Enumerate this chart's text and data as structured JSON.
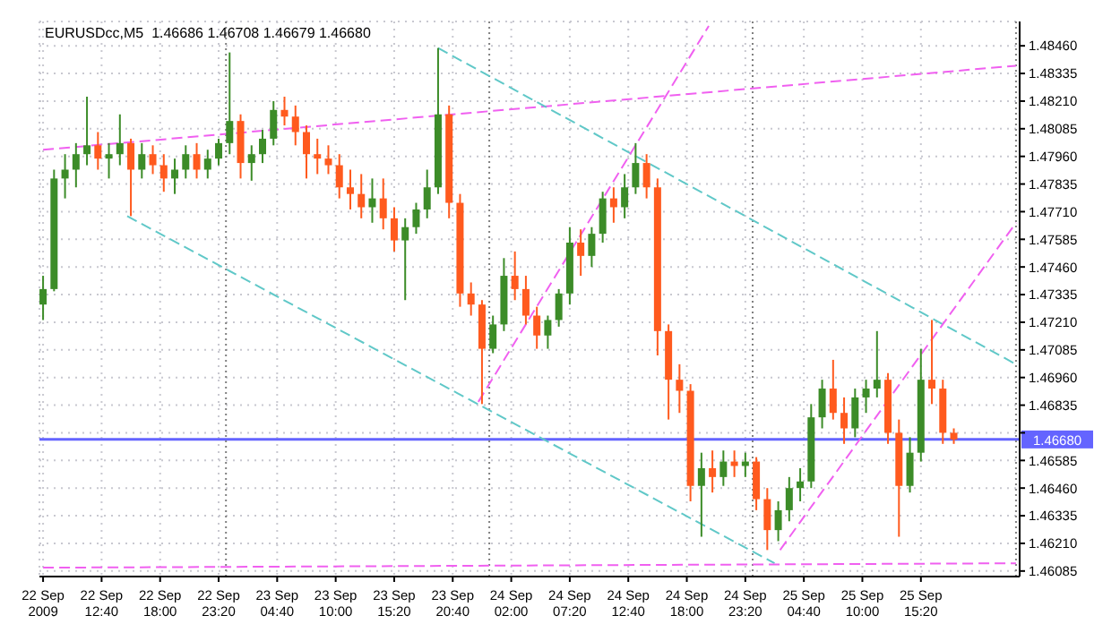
{
  "chart_data": {
    "type": "candlestick",
    "title": "EURUSDcc,M5  1.46686 1.46708 1.46679 1.46680",
    "x": [
      "2009-09-22T07:20",
      "2009-09-22T08:20",
      "2009-09-22T09:20",
      "2009-09-22T10:20",
      "2009-09-22T11:20",
      "2009-09-22T12:20",
      "2009-09-22T13:20",
      "2009-09-22T14:20",
      "2009-09-22T15:20",
      "2009-09-22T16:20",
      "2009-09-22T17:20",
      "2009-09-22T18:20",
      "2009-09-22T19:20",
      "2009-09-22T20:20",
      "2009-09-22T21:20",
      "2009-09-22T22:20",
      "2009-09-22T23:20",
      "2009-09-23T00:20",
      "2009-09-23T01:20",
      "2009-09-23T02:20",
      "2009-09-23T03:20",
      "2009-09-23T04:20",
      "2009-09-23T05:20",
      "2009-09-23T06:20",
      "2009-09-23T07:20",
      "2009-09-23T08:20",
      "2009-09-23T09:20",
      "2009-09-23T10:20",
      "2009-09-23T11:20",
      "2009-09-23T12:20",
      "2009-09-23T13:20",
      "2009-09-23T14:20",
      "2009-09-23T15:20",
      "2009-09-23T16:20",
      "2009-09-23T17:20",
      "2009-09-23T18:20",
      "2009-09-23T19:20",
      "2009-09-23T20:20",
      "2009-09-23T21:20",
      "2009-09-23T22:20",
      "2009-09-23T23:20",
      "2009-09-24T00:20",
      "2009-09-24T01:20",
      "2009-09-24T02:20",
      "2009-09-24T03:20",
      "2009-09-24T04:20",
      "2009-09-24T05:20",
      "2009-09-24T06:20",
      "2009-09-24T07:20",
      "2009-09-24T08:20",
      "2009-09-24T09:20",
      "2009-09-24T10:20",
      "2009-09-24T11:20",
      "2009-09-24T12:20",
      "2009-09-24T13:20",
      "2009-09-24T14:20",
      "2009-09-24T15:20",
      "2009-09-24T16:20",
      "2009-09-24T17:20",
      "2009-09-24T18:20",
      "2009-09-24T19:20",
      "2009-09-24T20:20",
      "2009-09-24T21:20",
      "2009-09-24T22:20",
      "2009-09-24T23:20",
      "2009-09-25T00:20",
      "2009-09-25T01:20",
      "2009-09-25T02:20",
      "2009-09-25T03:20",
      "2009-09-25T04:20",
      "2009-09-25T05:20",
      "2009-09-25T06:20",
      "2009-09-25T07:20",
      "2009-09-25T08:20",
      "2009-09-25T09:20",
      "2009-09-25T10:20",
      "2009-09-25T11:20",
      "2009-09-25T12:20",
      "2009-09-25T13:20",
      "2009-09-25T14:20",
      "2009-09-25T15:20",
      "2009-09-25T16:20",
      "2009-09-25T17:20",
      "2009-09-25T18:20"
    ],
    "ohlc": [
      [
        1.4729,
        1.4742,
        1.4722,
        1.4736
      ],
      [
        1.4736,
        1.479,
        1.4735,
        1.4786
      ],
      [
        1.4786,
        1.4797,
        1.4777,
        1.479
      ],
      [
        1.479,
        1.4802,
        1.4782,
        1.4797
      ],
      [
        1.4797,
        1.4823,
        1.4792,
        1.4801
      ],
      [
        1.4801,
        1.4807,
        1.479,
        1.4795
      ],
      [
        1.4795,
        1.4802,
        1.4786,
        1.4797
      ],
      [
        1.4797,
        1.4815,
        1.4792,
        1.4802
      ],
      [
        1.4802,
        1.4804,
        1.4769,
        1.479
      ],
      [
        1.479,
        1.4802,
        1.4786,
        1.4797
      ],
      [
        1.4797,
        1.4801,
        1.4788,
        1.4792
      ],
      [
        1.4792,
        1.4797,
        1.478,
        1.4786
      ],
      [
        1.4786,
        1.4795,
        1.4779,
        1.479
      ],
      [
        1.479,
        1.4801,
        1.4786,
        1.4797
      ],
      [
        1.4797,
        1.4802,
        1.4786,
        1.479
      ],
      [
        1.479,
        1.4799,
        1.4786,
        1.4795
      ],
      [
        1.4795,
        1.4804,
        1.4792,
        1.4802
      ],
      [
        1.4802,
        1.4843,
        1.4797,
        1.4812
      ],
      [
        1.4812,
        1.4815,
        1.4786,
        1.4793
      ],
      [
        1.4793,
        1.4801,
        1.4785,
        1.4797
      ],
      [
        1.4797,
        1.4808,
        1.4793,
        1.4804
      ],
      [
        1.4804,
        1.4821,
        1.4801,
        1.4817
      ],
      [
        1.4817,
        1.4823,
        1.481,
        1.4814
      ],
      [
        1.4814,
        1.4819,
        1.4801,
        1.4807
      ],
      [
        1.4807,
        1.481,
        1.4786,
        1.4797
      ],
      [
        1.4797,
        1.4804,
        1.4788,
        1.4795
      ],
      [
        1.4795,
        1.4801,
        1.4788,
        1.4792
      ],
      [
        1.4792,
        1.4797,
        1.4777,
        1.4782
      ],
      [
        1.4782,
        1.479,
        1.4772,
        1.4779
      ],
      [
        1.4779,
        1.4788,
        1.4768,
        1.4773
      ],
      [
        1.4773,
        1.4786,
        1.4766,
        1.4777
      ],
      [
        1.4777,
        1.4786,
        1.4763,
        1.4768
      ],
      [
        1.4768,
        1.4773,
        1.4753,
        1.4758
      ],
      [
        1.4758,
        1.4768,
        1.4731,
        1.4764
      ],
      [
        1.4764,
        1.4775,
        1.4761,
        1.4772
      ],
      [
        1.4772,
        1.479,
        1.4768,
        1.4782
      ],
      [
        1.4782,
        1.4845,
        1.4779,
        1.4815
      ],
      [
        1.4815,
        1.4819,
        1.4768,
        1.4775
      ],
      [
        1.4775,
        1.4779,
        1.4728,
        1.4734
      ],
      [
        1.4734,
        1.4739,
        1.4724,
        1.4729
      ],
      [
        1.4729,
        1.4731,
        1.4684,
        1.4709
      ],
      [
        1.4709,
        1.4724,
        1.4707,
        1.472
      ],
      [
        1.472,
        1.475,
        1.4717,
        1.4742
      ],
      [
        1.4742,
        1.4753,
        1.4731,
        1.4736
      ],
      [
        1.4736,
        1.4742,
        1.472,
        1.4724
      ],
      [
        1.4724,
        1.4728,
        1.4709,
        1.4715
      ],
      [
        1.4715,
        1.4724,
        1.4709,
        1.4722
      ],
      [
        1.4722,
        1.4736,
        1.4719,
        1.4734
      ],
      [
        1.4734,
        1.4764,
        1.4729,
        1.4757
      ],
      [
        1.4757,
        1.4763,
        1.4742,
        1.4751
      ],
      [
        1.4751,
        1.4764,
        1.4746,
        1.4761
      ],
      [
        1.4761,
        1.478,
        1.4757,
        1.4777
      ],
      [
        1.4777,
        1.4782,
        1.4766,
        1.4773
      ],
      [
        1.4773,
        1.4788,
        1.4768,
        1.4782
      ],
      [
        1.4782,
        1.4802,
        1.4779,
        1.4793
      ],
      [
        1.4793,
        1.4797,
        1.4777,
        1.4782
      ],
      [
        1.4782,
        1.4786,
        1.4706,
        1.4717
      ],
      [
        1.4717,
        1.472,
        1.4677,
        1.4695
      ],
      [
        1.4695,
        1.4702,
        1.468,
        1.469
      ],
      [
        1.469,
        1.4693,
        1.464,
        1.4647
      ],
      [
        1.4647,
        1.4662,
        1.4624,
        1.4655
      ],
      [
        1.4655,
        1.4663,
        1.4644,
        1.4651
      ],
      [
        1.4651,
        1.4663,
        1.4647,
        1.4658
      ],
      [
        1.4658,
        1.4663,
        1.4651,
        1.4656
      ],
      [
        1.4656,
        1.4662,
        1.4651,
        1.4658
      ],
      [
        1.4658,
        1.466,
        1.4636,
        1.4641
      ],
      [
        1.4641,
        1.4646,
        1.4618,
        1.4627
      ],
      [
        1.4627,
        1.464,
        1.4622,
        1.4636
      ],
      [
        1.4636,
        1.4651,
        1.4631,
        1.4646
      ],
      [
        1.4646,
        1.4655,
        1.464,
        1.4649
      ],
      [
        1.4649,
        1.4684,
        1.4646,
        1.4678
      ],
      [
        1.4678,
        1.4695,
        1.4673,
        1.4691
      ],
      [
        1.4691,
        1.4704,
        1.4677,
        1.468
      ],
      [
        1.468,
        1.4687,
        1.4666,
        1.4673
      ],
      [
        1.4673,
        1.4691,
        1.4669,
        1.4687
      ],
      [
        1.4687,
        1.4695,
        1.468,
        1.4691
      ],
      [
        1.4691,
        1.4717,
        1.4687,
        1.4695
      ],
      [
        1.4695,
        1.4698,
        1.4666,
        1.4671
      ],
      [
        1.4671,
        1.4677,
        1.4624,
        1.4647
      ],
      [
        1.4647,
        1.4669,
        1.4644,
        1.4662
      ],
      [
        1.4662,
        1.4709,
        1.4658,
        1.4695
      ],
      [
        1.4695,
        1.4722,
        1.4684,
        1.4691
      ],
      [
        1.4691,
        1.4695,
        1.4666,
        1.4671
      ],
      [
        1.4671,
        1.4673,
        1.4666,
        1.4668
      ]
    ],
    "colors": [
      "#3c8c28",
      "#3c8c28",
      "#3c8c28",
      "#3c8c28",
      "#3c8c28",
      "#ff5a1e",
      "#3c8c28",
      "#3c8c28",
      "#ff5a1e",
      "#3c8c28",
      "#ff5a1e",
      "#ff5a1e",
      "#3c8c28",
      "#3c8c28",
      "#ff5a1e",
      "#3c8c28",
      "#3c8c28",
      "#3c8c28",
      "#ff5a1e",
      "#3c8c28",
      "#3c8c28",
      "#3c8c28",
      "#ff5a1e",
      "#ff5a1e",
      "#ff5a1e",
      "#ff5a1e",
      "#ff5a1e",
      "#ff5a1e",
      "#ff5a1e",
      "#ff5a1e",
      "#3c8c28",
      "#ff5a1e",
      "#ff5a1e",
      "#3c8c28",
      "#3c8c28",
      "#3c8c28",
      "#3c8c28",
      "#ff5a1e",
      "#ff5a1e",
      "#ff5a1e",
      "#ff5a1e",
      "#3c8c28",
      "#3c8c28",
      "#ff5a1e",
      "#ff5a1e",
      "#ff5a1e",
      "#3c8c28",
      "#3c8c28",
      "#3c8c28",
      "#ff5a1e",
      "#3c8c28",
      "#3c8c28",
      "#ff5a1e",
      "#3c8c28",
      "#3c8c28",
      "#ff5a1e",
      "#ff5a1e",
      "#ff5a1e",
      "#ff5a1e",
      "#ff5a1e",
      "#3c8c28",
      "#ff5a1e",
      "#3c8c28",
      "#ff5a1e",
      "#3c8c28",
      "#ff5a1e",
      "#ff5a1e",
      "#3c8c28",
      "#3c8c28",
      "#3c8c28",
      "#3c8c28",
      "#3c8c28",
      "#ff5a1e",
      "#ff5a1e",
      "#3c8c28",
      "#3c8c28",
      "#3c8c28",
      "#ff5a1e",
      "#ff5a1e",
      "#3c8c28",
      "#3c8c28",
      "#ff5a1e",
      "#ff5a1e",
      "#ff5a1e"
    ],
    "series": [
      {
        "type": "line",
        "color": "#f060f0",
        "line_style": "dashed",
        "x": [
          "2009-09-22T07:20",
          "2009-09-26T00:00"
        ],
        "values": [
          1.4799,
          1.4837
        ]
      },
      {
        "type": "line",
        "color": "#60c8c8",
        "line_style": "dashed",
        "x": [
          "2009-09-23T19:20",
          "2009-09-26T00:00"
        ],
        "values": [
          1.4845,
          1.4702
        ]
      },
      {
        "type": "line",
        "color": "#60c8c8",
        "line_style": "dashed",
        "x": [
          "2009-09-22T15:00",
          "2009-09-25T02:00"
        ],
        "values": [
          1.4769,
          1.4612
        ]
      },
      {
        "type": "line",
        "color": "#f060f0",
        "line_style": "dashed",
        "x": [
          "2009-09-23T23:00",
          "2009-09-24T20:00"
        ],
        "values": [
          1.4685,
          1.4855
        ]
      },
      {
        "type": "line",
        "color": "#f060f0",
        "line_style": "dashed",
        "x": [
          "2009-09-25T02:30",
          "2009-09-26T00:00"
        ],
        "values": [
          1.4618,
          1.4766
        ]
      },
      {
        "type": "line",
        "color": "#f060f0",
        "line_style": "dashed",
        "x": [
          "2009-09-22T07:20",
          "2009-09-26T00:00"
        ],
        "values": [
          1.461,
          1.4612
        ]
      }
    ],
    "xlim": [
      "2009-09-22T07:00",
      "2009-09-26T00:20"
    ],
    "xticks": [
      {
        "value": "2009-09-22T07:20",
        "label": "22 Sep 2009"
      },
      {
        "value": "2009-09-22T12:40",
        "label": "22 Sep 12:40"
      },
      {
        "value": "2009-09-22T18:00",
        "label": "22 Sep 18:00"
      },
      {
        "value": "2009-09-22T23:20",
        "label": "22 Sep 23:20"
      },
      {
        "value": "2009-09-23T04:40",
        "label": "23 Sep 04:40"
      },
      {
        "value": "2009-09-23T10:00",
        "label": "23 Sep 10:00"
      },
      {
        "value": "2009-09-23T15:20",
        "label": "23 Sep 15:20"
      },
      {
        "value": "2009-09-23T20:40",
        "label": "23 Sep 20:40"
      },
      {
        "value": "2009-09-24T02:00",
        "label": "24 Sep 02:00"
      },
      {
        "value": "2009-09-24T07:20",
        "label": "24 Sep 07:20"
      },
      {
        "value": "2009-09-24T12:40",
        "label": "24 Sep 12:40"
      },
      {
        "value": "2009-09-24T18:00",
        "label": "24 Sep 18:00"
      },
      {
        "value": "2009-09-24T23:20",
        "label": "24 Sep 23:20"
      },
      {
        "value": "2009-09-25T04:40",
        "label": "25 Sep 04:40"
      },
      {
        "value": "2009-09-25T10:00",
        "label": "25 Sep 10:00"
      },
      {
        "value": "2009-09-25T15:20",
        "label": "25 Sep 15:20"
      }
    ],
    "ylim": [
      1.4606,
      1.4857
    ],
    "yticks": [
      {
        "value": 1.46085,
        "label": "1.46085"
      },
      {
        "value": 1.4621,
        "label": "1.46210"
      },
      {
        "value": 1.46335,
        "label": "1.46335"
      },
      {
        "value": 1.4646,
        "label": "1.46460"
      },
      {
        "value": 1.46585,
        "label": "1.46585"
      },
      {
        "value": 1.4671,
        "label": null
      },
      {
        "value": 1.46835,
        "label": "1.46835"
      },
      {
        "value": 1.4696,
        "label": "1.46960"
      },
      {
        "value": 1.47085,
        "label": "1.47085"
      },
      {
        "value": 1.4721,
        "label": "1.47210"
      },
      {
        "value": 1.47335,
        "label": "1.47335"
      },
      {
        "value": 1.4746,
        "label": "1.47460"
      },
      {
        "value": 1.47585,
        "label": "1.47585"
      },
      {
        "value": 1.4771,
        "label": "1.47710"
      },
      {
        "value": 1.47835,
        "label": "1.47835"
      },
      {
        "value": 1.4796,
        "label": "1.47960"
      },
      {
        "value": 1.48085,
        "label": "1.48085"
      },
      {
        "value": 1.4821,
        "label": "1.48210"
      },
      {
        "value": 1.48335,
        "label": "1.48335"
      },
      {
        "value": 1.4846,
        "label": "1.48460"
      }
    ],
    "ref_lines": [
      {
        "axis": "y",
        "value": 1.4668,
        "label": "1.46680",
        "color": "#6464ff",
        "line_style": "solid"
      },
      {
        "axis": "x",
        "value": "2009-09-23T00:00",
        "color": "#808080",
        "line_style": "dotted"
      },
      {
        "axis": "x",
        "value": "2009-09-24T00:00",
        "color": "#808080",
        "line_style": "dotted"
      },
      {
        "axis": "x",
        "value": "2009-09-25T00:00",
        "color": "#808080",
        "line_style": "dotted"
      },
      {
        "axis": "x",
        "value": "2009-09-26T00:00",
        "color": "#808080",
        "line_style": "dotted"
      }
    ],
    "grid": true
  }
}
